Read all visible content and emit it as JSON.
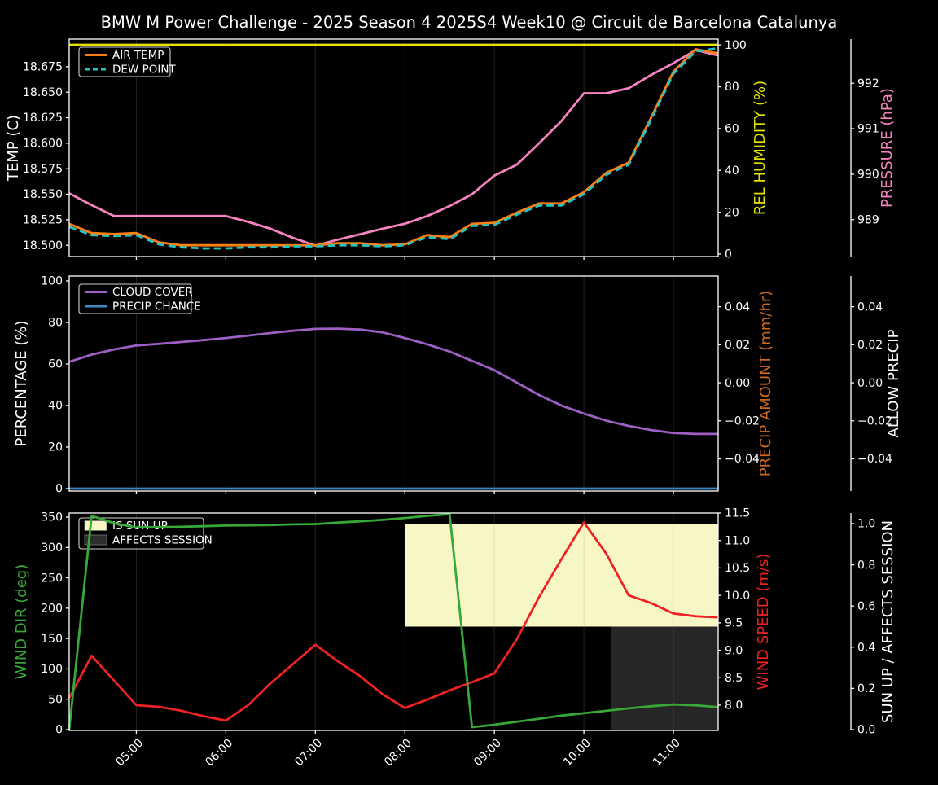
{
  "title": "BMW M Power Challenge - 2025 Season 4 2025S4 Week10 @ Circuit de Barcelona Catalunya",
  "chart_data": {
    "type": "line",
    "title": "BMW M Power Challenge - 2025 Season 4 2025S4 Week10 @ Circuit de Barcelona Catalunya",
    "grid": "vertical-hourly",
    "x_range_hours": [
      4.25,
      11.5
    ],
    "x_tick_hours": [
      5,
      6,
      7,
      8,
      9,
      10,
      11
    ],
    "x_tick_labels": [
      "05:00",
      "06:00",
      "07:00",
      "08:00",
      "09:00",
      "10:00",
      "11:00"
    ],
    "time_points_hours": [
      4.25,
      4.5,
      4.75,
      5.0,
      5.25,
      5.5,
      5.75,
      6.0,
      6.25,
      6.5,
      6.75,
      7.0,
      7.25,
      7.5,
      7.75,
      8.0,
      8.25,
      8.5,
      8.75,
      9.0,
      9.25,
      9.5,
      9.75,
      10.0,
      10.25,
      10.5,
      10.75,
      11.0,
      11.25,
      11.5
    ],
    "subplots": [
      {
        "name": "temperature humidity pressure",
        "legend_position": "upper left",
        "left_axis": {
          "label": "TEMP (C)",
          "color": "#ffffff",
          "tick_labels": [
            "18.675",
            "18.650",
            "18.625",
            "18.600",
            "18.575",
            "18.550",
            "18.525",
            "18.500"
          ],
          "tick_values": [
            18.675,
            18.65,
            18.625,
            18.6,
            18.575,
            18.55,
            18.525,
            18.5
          ],
          "range": [
            18.489,
            18.702
          ]
        },
        "right_axes": [
          {
            "label": "REL HUMIDITY (%)",
            "color": "#e3e300",
            "offset": false,
            "tick_labels": [
              "0",
              "20",
              "40",
              "60",
              "80",
              "100"
            ],
            "tick_values": [
              0,
              20,
              40,
              60,
              80,
              100
            ],
            "range": [
              -1.2,
              102.8
            ]
          },
          {
            "label": "PRESSURE (hPa)",
            "color": "#f783c1",
            "offset": true,
            "tick_labels": [
              "989",
              "990",
              "991",
              "992"
            ],
            "tick_values": [
              989,
              990,
              991,
              992
            ],
            "range": [
              988.19,
              992.97
            ]
          }
        ],
        "legend": [
          {
            "label": "AIR TEMP",
            "swatch": "line",
            "color": "#ff7f0e"
          },
          {
            "label": "DEW POINT",
            "swatch": "dashed-line",
            "color": "#25c3c3"
          }
        ],
        "series": [
          {
            "name": "REL HUMIDITY",
            "axis": "r0",
            "color": "#e3e300",
            "width": 3.2,
            "dash": null,
            "values": [
              100,
              100,
              100,
              100,
              100,
              100,
              100,
              100,
              100,
              100,
              100,
              100,
              100,
              100,
              100,
              100,
              100,
              100,
              100,
              100,
              100,
              100,
              100,
              100,
              100,
              100,
              100,
              100,
              100,
              100
            ]
          },
          {
            "name": "PRESSURE",
            "axis": "r1",
            "color": "#f783c1",
            "width": 2.8,
            "dash": null,
            "values": [
              989.58,
              989.32,
              989.08,
              989.08,
              989.08,
              989.08,
              989.08,
              989.08,
              988.95,
              988.8,
              988.6,
              988.43,
              988.56,
              988.68,
              988.8,
              988.91,
              989.08,
              989.3,
              989.56,
              989.97,
              990.21,
              990.68,
              991.17,
              991.78,
              991.78,
              991.89,
              992.18,
              992.44,
              992.73,
              992.61
            ]
          },
          {
            "name": "AIR TEMP",
            "axis": "left",
            "color": "#ff7f0e",
            "width": 2.8,
            "dash": null,
            "values": [
              18.521,
              18.512,
              18.511,
              18.512,
              18.503,
              18.5,
              18.5,
              18.5,
              18.5,
              18.5,
              18.5,
              18.5,
              18.502,
              18.502,
              18.5,
              18.501,
              18.51,
              18.508,
              18.521,
              18.522,
              18.532,
              18.541,
              18.541,
              18.552,
              18.571,
              18.581,
              18.625,
              18.67,
              18.692,
              18.688
            ]
          },
          {
            "name": "DEW POINT",
            "axis": "left",
            "color": "#25c3c3",
            "width": 2.8,
            "dash": "9 5",
            "values": [
              18.518,
              18.51,
              18.509,
              18.51,
              18.501,
              18.498,
              18.497,
              18.497,
              18.498,
              18.498,
              18.499,
              18.499,
              18.5,
              18.5,
              18.499,
              18.5,
              18.508,
              18.506,
              18.519,
              18.52,
              18.53,
              18.539,
              18.539,
              18.55,
              18.569,
              18.579,
              18.623,
              18.668,
              18.69,
              18.693
            ]
          }
        ]
      },
      {
        "name": "cloud precip",
        "legend_position": "upper left",
        "left_axis": {
          "label": "PERCENTAGE (%)",
          "color": "#ffffff",
          "tick_labels": [
            "0",
            "20",
            "40",
            "60",
            "80",
            "100"
          ],
          "tick_values": [
            0,
            20,
            40,
            60,
            80,
            100
          ],
          "range": [
            -1.18,
            102.35
          ]
        },
        "right_axes": [
          {
            "label": "PRECIP AMOUNT (mm/hr)",
            "color": "#cd681e",
            "offset": false,
            "tick_labels": [
              "0.04",
              "0.02",
              "0.00",
              "−0.02",
              "−0.04"
            ],
            "tick_values": [
              0.04,
              0.02,
              0.0,
              -0.02,
              -0.04
            ],
            "range": [
              -0.0569,
              0.0561
            ]
          },
          {
            "label": "ALLOW PRECIP",
            "color": "#ffffff",
            "offset": true,
            "tick_labels": [
              "0.04",
              "0.02",
              "0.00",
              "−0.02",
              "−0.04"
            ],
            "tick_values": [
              0.04,
              0.02,
              0.0,
              -0.02,
              -0.04
            ],
            "range": [
              -0.0569,
              0.0561
            ]
          }
        ],
        "legend": [
          {
            "label": "CLOUD COVER",
            "swatch": "line",
            "color": "#9d5fc4"
          },
          {
            "label": "PRECIP CHANCE",
            "swatch": "line",
            "color": "#3f87c5"
          }
        ],
        "series": [
          {
            "name": "CLOUD COVER",
            "axis": "left",
            "color": "#9d5fc4",
            "width": 2.8,
            "dash": null,
            "values": [
              61,
              64.5,
              67,
              68.9,
              69.7,
              70.6,
              71.5,
              72.5,
              73.7,
              74.9,
              76,
              76.9,
              77,
              76.6,
              75.2,
              72.5,
              69.5,
              66,
              61.5,
              57,
              51,
              45.1,
              40,
              36.1,
              32.7,
              30.2,
              28.2,
              26.8,
              26.3,
              26.3
            ]
          },
          {
            "name": "PRECIP CHANCE",
            "axis": "left",
            "color": "#3f87c5",
            "width": 2.8,
            "dash": null,
            "values": [
              0,
              0,
              0,
              0,
              0,
              0,
              0,
              0,
              0,
              0,
              0,
              0,
              0,
              0,
              0,
              0,
              0,
              0,
              0,
              0,
              0,
              0,
              0,
              0,
              0,
              0,
              0,
              0,
              0,
              0
            ]
          }
        ]
      },
      {
        "name": "wind sun session",
        "legend_position": "upper left",
        "left_axis": {
          "label": "WIND DIR (deg)",
          "color": "#37a837",
          "tick_labels": [
            "0",
            "50",
            "100",
            "150",
            "200",
            "250",
            "300",
            "350"
          ],
          "tick_values": [
            0,
            50,
            100,
            150,
            200,
            250,
            300,
            350
          ],
          "range": [
            -1.34,
            356.7
          ]
        },
        "right_axes": [
          {
            "label": "WIND SPEED (m/s)",
            "color": "#ee2222",
            "offset": false,
            "tick_labels": [
              "8.0",
              "8.5",
              "9.0",
              "9.5",
              "10.0",
              "10.5",
              "11.0",
              "11.5"
            ],
            "tick_values": [
              8.0,
              8.5,
              9.0,
              9.5,
              10.0,
              10.5,
              11.0,
              11.5
            ],
            "range": [
              7.54,
              11.5
            ]
          },
          {
            "label": "SUN UP / AFFECTS SESSION",
            "color": "#ffffff",
            "offset": true,
            "tick_labels": [
              "0.0",
              "0.2",
              "0.4",
              "0.6",
              "0.8",
              "1.0"
            ],
            "tick_values": [
              0.0,
              0.2,
              0.4,
              0.6,
              0.8,
              1.0
            ],
            "range": [
              -0.004,
              1.0514
            ]
          }
        ],
        "legend": [
          {
            "label": "IS SUN UP",
            "swatch": "patch",
            "color": "#f7f7c6"
          },
          {
            "label": "AFFECTS SESSION",
            "swatch": "patch",
            "color": "#2e2e2e"
          }
        ],
        "regions": [
          {
            "name": "IS SUN UP",
            "color": "#f7f7c6",
            "axis": "r1",
            "x_from": 8.0,
            "x_to": 11.5,
            "value_from": 0.5,
            "value_to": 1.0
          },
          {
            "name": "AFFECTS SESSION",
            "color": "#262626",
            "axis": "r1",
            "x_from": 10.3,
            "x_to": 11.5,
            "value_from": 0.0,
            "value_to": 0.5
          }
        ],
        "series": [
          {
            "name": "WIND SPEED",
            "axis": "r0",
            "color": "#ee2222",
            "width": 2.8,
            "dash": null,
            "values": [
              8.13,
              8.9,
              8.45,
              8.0,
              7.97,
              7.9,
              7.8,
              7.72,
              8.0,
              8.4,
              8.75,
              9.1,
              8.8,
              8.53,
              8.2,
              7.95,
              8.1,
              8.27,
              8.42,
              8.58,
              9.2,
              9.97,
              10.66,
              11.33,
              10.76,
              10.0,
              9.86,
              9.67,
              9.62,
              9.6
            ]
          },
          {
            "name": "WIND DIR",
            "axis": "left",
            "color": "#37a837",
            "width": 2.8,
            "dash": null,
            "values": [
              0,
              352,
              340,
              333,
              333.5,
              334,
              335,
              336,
              336.5,
              337,
              338,
              338.5,
              341,
              343,
              345.5,
              348.5,
              352,
              355,
              4,
              8,
              13,
              18,
              23,
              27,
              31,
              35,
              38.5,
              41.5,
              40,
              37
            ]
          }
        ]
      }
    ]
  }
}
